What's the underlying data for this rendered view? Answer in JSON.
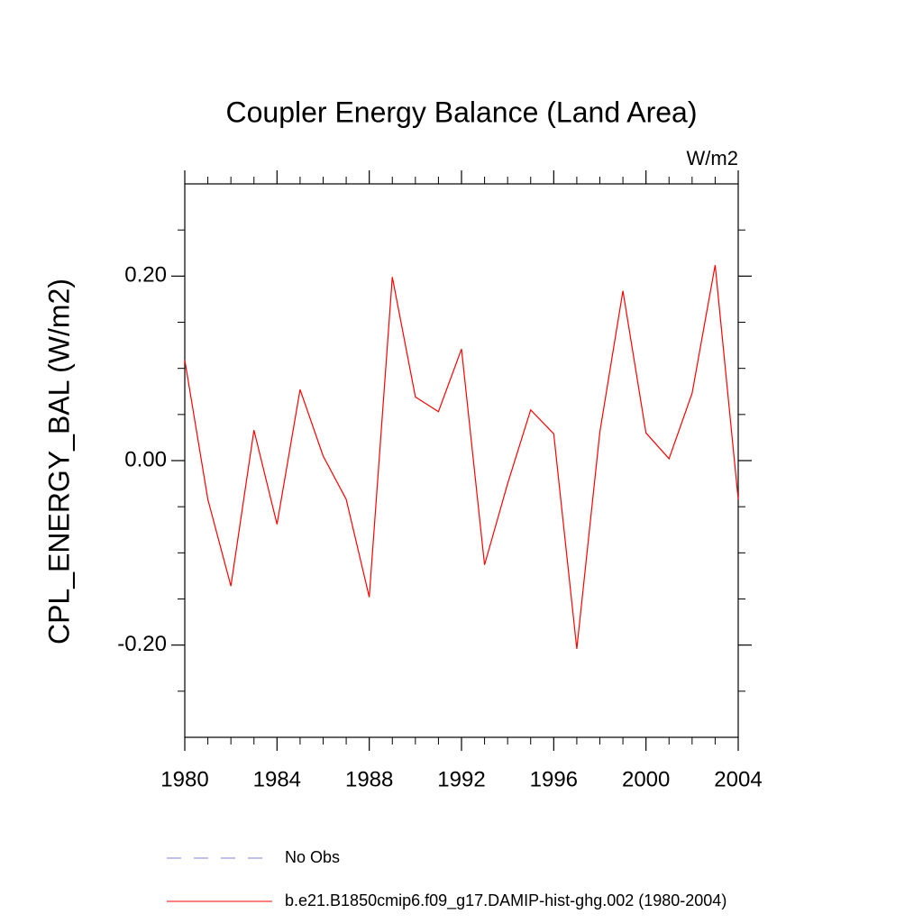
{
  "chart_data": {
    "type": "line",
    "title": "Coupler Energy Balance (Land Area)",
    "subtitle": "W/m2",
    "y_label": "CPL_ENERGY_BAL  (W/m2)",
    "x": [
      1980,
      1981,
      1982,
      1983,
      1984,
      1985,
      1986,
      1987,
      1988,
      1989,
      1990,
      1991,
      1992,
      1993,
      1994,
      1995,
      1996,
      1997,
      1998,
      1999,
      2000,
      2001,
      2002,
      2003,
      2004
    ],
    "series": [
      {
        "name": "b.e21.B1850cmip6.f09_g17.DAMIP-hist-ghg.002 (1980-2004)",
        "color": "#ff0000",
        "values": [
          0.109,
          -0.042,
          -0.136,
          0.033,
          -0.069,
          0.077,
          0.005,
          -0.042,
          -0.148,
          0.199,
          0.069,
          0.053,
          0.121,
          -0.113,
          -0.025,
          0.055,
          0.029,
          -0.204,
          0.031,
          0.184,
          0.03,
          0.002,
          0.073,
          0.212,
          -0.042
        ]
      }
    ],
    "extra_legend": [
      {
        "name": "No Obs",
        "color": "#7f7fcf",
        "dash": "dashed"
      }
    ],
    "xlim": [
      1980,
      2004
    ],
    "xticks": [
      1980,
      1984,
      1988,
      1992,
      1996,
      2000,
      2004
    ],
    "xminorticks": [
      1981,
      1982,
      1983,
      1985,
      1986,
      1987,
      1989,
      1990,
      1991,
      1993,
      1994,
      1995,
      1997,
      1998,
      1999,
      2001,
      2002,
      2003
    ],
    "ylim": [
      -0.3,
      0.3
    ],
    "yticks": [
      {
        "value": -0.2,
        "label": "-0.20"
      },
      {
        "value": 0,
        "label": "0.00"
      },
      {
        "value": 0.2,
        "label": "0.20"
      }
    ],
    "yminorticks": [
      -0.25,
      -0.15,
      -0.1,
      -0.05,
      0.05,
      0.1,
      0.15,
      0.25
    ]
  }
}
